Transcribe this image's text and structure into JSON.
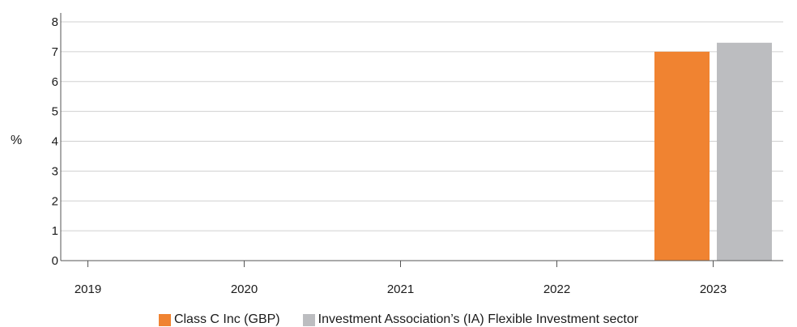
{
  "chart_data": {
    "type": "bar",
    "title": "",
    "xlabel": "",
    "ylabel": "%",
    "categories": [
      "2019",
      "2020",
      "2021",
      "2022",
      "2023"
    ],
    "ylim": [
      0,
      8
    ],
    "yticks": [
      "0",
      "1",
      "2",
      "3",
      "4",
      "5",
      "6",
      "7",
      "8"
    ],
    "grid": true,
    "legend_position": "bottom",
    "series": [
      {
        "name": "Class C Inc (GBP)",
        "color": "#f08331",
        "values": [
          null,
          null,
          null,
          null,
          7.0
        ]
      },
      {
        "name": "Investment Association’s (IA) Flexible Investment sector",
        "color": "#bcbdc0",
        "values": [
          null,
          null,
          null,
          null,
          7.3
        ]
      }
    ]
  }
}
